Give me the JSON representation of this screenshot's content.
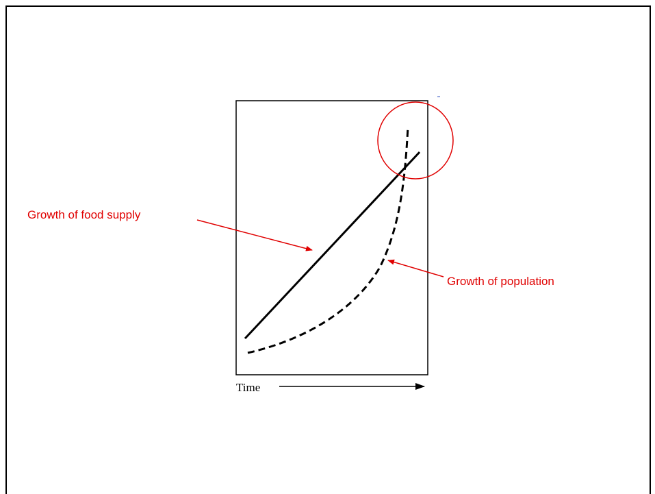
{
  "diagram": {
    "food_label": "Growth of food supply",
    "population_label": "Growth of population",
    "axis_label": "Time"
  }
}
